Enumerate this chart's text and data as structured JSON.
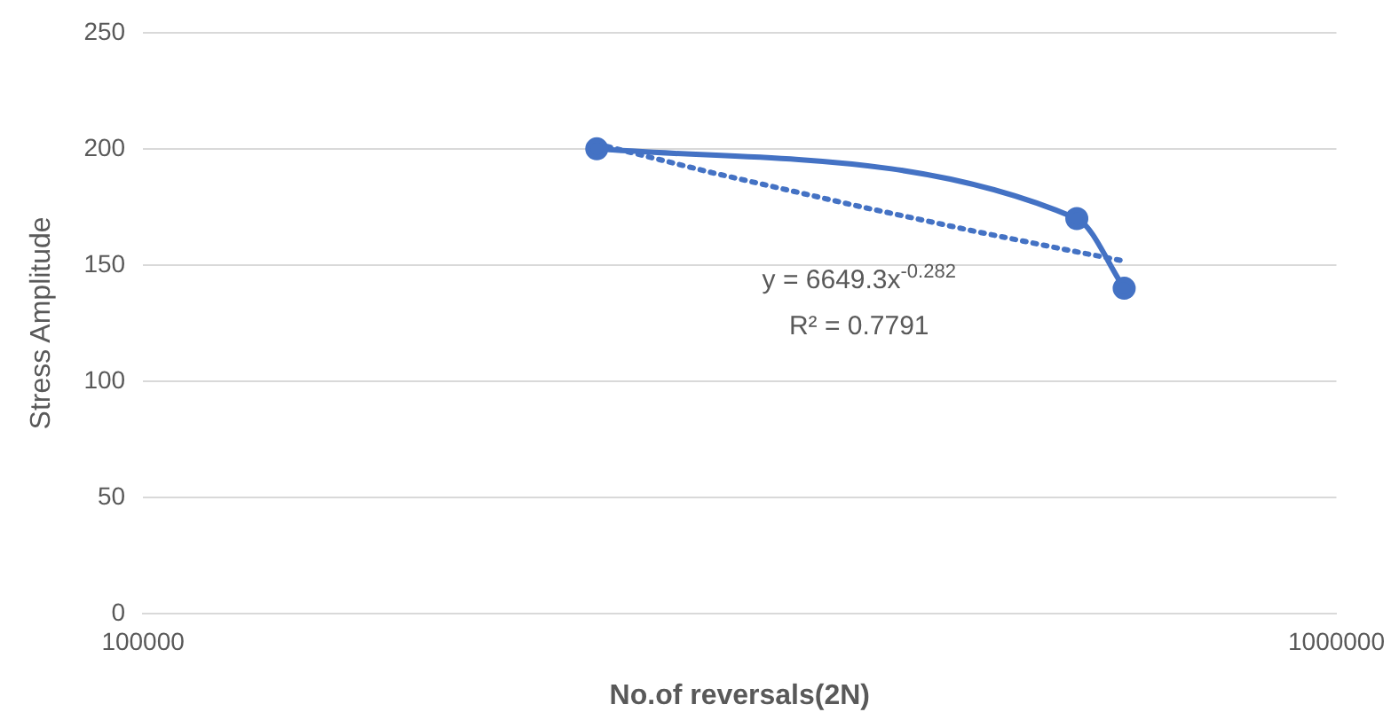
{
  "chart_data": {
    "type": "line",
    "xlabel": "No.of reversals(2N)",
    "ylabel": "Stress Amplitude",
    "log": "x",
    "grid": "y",
    "xlim": [
      100000,
      1000000
    ],
    "xticks": [
      100000,
      1000000
    ],
    "ylim": [
      0,
      250
    ],
    "yticks": [
      0,
      50,
      100,
      150,
      200,
      250
    ],
    "annotations": [
      "y = 6649.3x$^{-0.282}$",
      "R² = 0.7791"
    ],
    "series": [
      {
        "color": "#4472c4",
        "marker": "circle",
        "line_style": "solid",
        "x": [
          240000,
          606000,
          664000
        ],
        "values": [
          200,
          170,
          140
        ]
      },
      {
        "color": "#4472c4",
        "marker": "none",
        "line_style": "dotted",
        "x": [
          240000,
          300000,
          400000,
          500000,
          600000,
          664000
        ],
        "values": [
          202.1,
          189.7,
          175.0,
          164.3,
          156.1,
          151.7
        ]
      }
    ]
  }
}
